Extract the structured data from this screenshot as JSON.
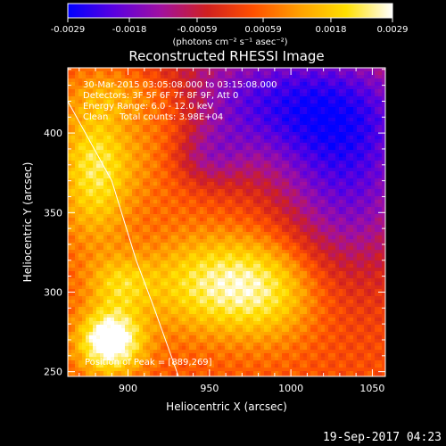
{
  "chart_data": {
    "type": "heatmap",
    "title": "Reconstructed RHESSI Image",
    "xlabel": "Heliocentric X (arcsec)",
    "ylabel": "Heliocentric Y (arcsec)",
    "xlim": [
      863,
      1058
    ],
    "ylim": [
      247,
      441
    ],
    "x_ticks": [
      900,
      950,
      1000,
      1050
    ],
    "y_ticks": [
      250,
      300,
      350,
      400
    ],
    "colorbar": {
      "unit_label": "(photons cm⁻² s⁻¹ asec⁻²)",
      "min": -0.0029,
      "max": 0.0029,
      "ticks": [
        "-0.0029",
        "-0.0018",
        "-0.00059",
        "0.00059",
        "0.0018",
        "0.0029"
      ],
      "colors": [
        "#0000ff",
        "#5a00e0",
        "#a010a0",
        "#d02020",
        "#ff5000",
        "#ffa000",
        "#ffe000",
        "#ffffff"
      ]
    },
    "annotations": [
      "30-Mar-2015 03:05:08.000 to 03:15:08.000",
      "Detectors: 3F 5F 6F 7F 8F 9F, Att 0",
      "Energy Range: 6.0 - 12.0 keV",
      "Clean    Total counts: 3.98E+04"
    ],
    "peak_label": "Position of Peak = [889,269]",
    "peak": {
      "x": 889,
      "y": 269
    },
    "limb": [
      [
        863,
        420
      ],
      [
        890,
        370
      ],
      [
        905,
        320
      ],
      [
        916,
        290
      ],
      [
        931,
        247
      ]
    ],
    "sources": [
      {
        "x": 889,
        "y": 269,
        "amp": 0.0031,
        "sx": 14,
        "sy": 14
      },
      {
        "x": 895,
        "y": 305,
        "amp": 0.0012,
        "sx": 14,
        "sy": 12
      },
      {
        "x": 955,
        "y": 305,
        "amp": 0.002,
        "sx": 32,
        "sy": 22
      },
      {
        "x": 990,
        "y": 300,
        "amp": 0.001,
        "sx": 22,
        "sy": 24
      },
      {
        "x": 880,
        "y": 380,
        "amp": 0.002,
        "sx": 16,
        "sy": 32
      },
      {
        "x": 925,
        "y": 395,
        "amp": 0.0014,
        "sx": 20,
        "sy": 22
      },
      {
        "x": 900,
        "y": 425,
        "amp": 0.001,
        "sx": 24,
        "sy": 12
      },
      {
        "x": 990,
        "y": 420,
        "amp": -0.0024,
        "sx": 60,
        "sy": 28
      },
      {
        "x": 1035,
        "y": 370,
        "amp": -0.0022,
        "sx": 32,
        "sy": 45
      },
      {
        "x": 945,
        "y": 385,
        "amp": -0.0014,
        "sx": 18,
        "sy": 14
      }
    ],
    "background": 0.0004
  },
  "footer": {
    "timestamp": "19-Sep-2017 04:23"
  }
}
